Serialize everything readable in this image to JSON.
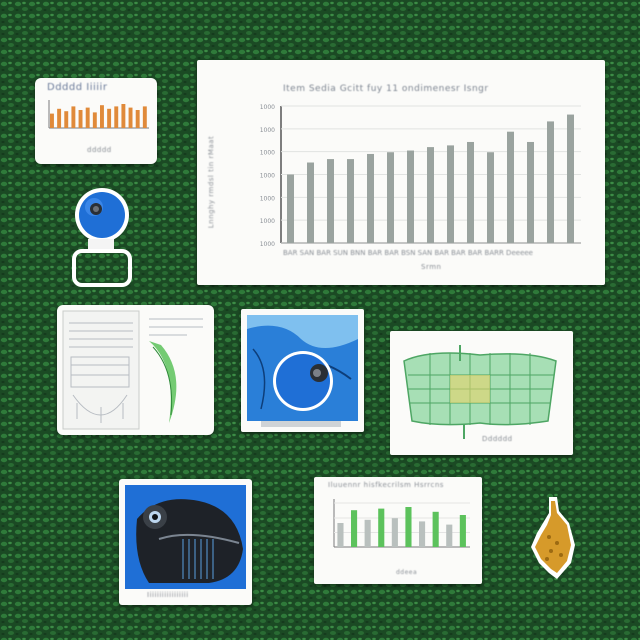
{
  "colors": {
    "background_dark": "#1b4a24",
    "background_light": "#2f7a3a",
    "bar_gray": "#9aa39f",
    "bar_orange": "#e08a3a",
    "bar_green": "#5cc25c",
    "blue_ball": "#1f6fd6",
    "mesh_green": "#7ecf8e",
    "gold_piece": "#d69a2a"
  },
  "main_chart": {
    "title": "Item Sedia Gcitt fuy 11 ondimenesr Isngr",
    "xlabel": "Srmn",
    "y_ticks": [
      "1000",
      "1000",
      "1000",
      "1000",
      "1000",
      "1000",
      "1000"
    ],
    "ylabel": "Lnnghy rmdsl tin rMaat",
    "x_ticks_caption": "BAR SAN BAR SUN BNN BAR BAR BSN SAN BAR BAR BAR BARR Deeeee"
  },
  "chart_data": {
    "type": "bar",
    "values": [
      40,
      47,
      49,
      49,
      52,
      53,
      54,
      56,
      57,
      59,
      53,
      65,
      59,
      71,
      75
    ],
    "ylim": [
      0,
      80
    ],
    "grid": true
  },
  "small_chart": {
    "title": "Ddddd Iiiiir",
    "footer": "ddddd",
    "values": [
      12,
      16,
      14,
      18,
      15,
      17,
      13,
      19,
      16,
      18,
      20,
      17,
      15,
      18
    ]
  },
  "green_bars_card": {
    "title": "Iluuennr hisfkecrilsm Hsrrcns",
    "values": [
      30,
      46,
      34,
      48,
      36,
      50,
      32,
      44,
      28,
      40
    ],
    "footer": "ddeea"
  },
  "mesh_card": {
    "caption": "Dddddd"
  },
  "creature_card": {
    "caption": "Iiiiiiiiiiiiiiiii"
  },
  "icons": [
    "blue-orb-icon",
    "blue-sphere-icon",
    "gold-puzzle-icon",
    "creature-icon"
  ]
}
